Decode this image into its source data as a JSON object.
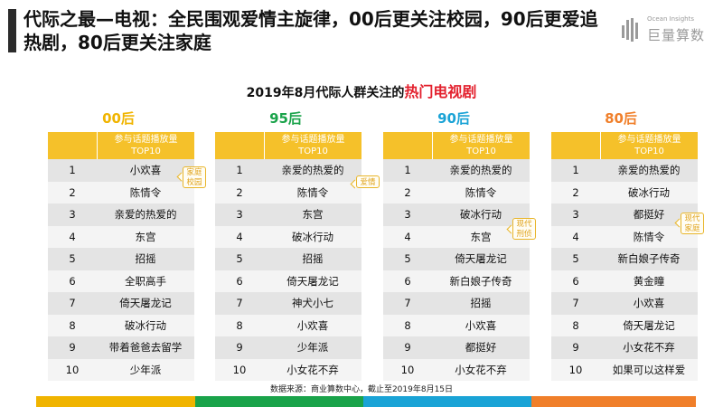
{
  "header": {
    "title": "代际之最—电视：全民围观爱情主旋律，00后更关注校园，90后更爱追热剧，80后更关注家庭",
    "logo_en": "Ocean Insights",
    "logo_cn": "巨量算数"
  },
  "subtitle": {
    "prefix": "2019年8月代际人群关注的",
    "highlight": "热门电视剧"
  },
  "table_header": {
    "line1": "参与话题播放量",
    "line2": "TOP10"
  },
  "generations": [
    {
      "label": "00后",
      "color": "#f0b400",
      "rows": [
        {
          "rank": "1",
          "show": "小欢喜"
        },
        {
          "rank": "2",
          "show": "陈情令"
        },
        {
          "rank": "3",
          "show": "亲爱的热爱的"
        },
        {
          "rank": "4",
          "show": "东宫"
        },
        {
          "rank": "5",
          "show": "招摇"
        },
        {
          "rank": "6",
          "show": "全职高手"
        },
        {
          "rank": "7",
          "show": "倚天屠龙记"
        },
        {
          "rank": "8",
          "show": "破冰行动"
        },
        {
          "rank": "9",
          "show": "带着爸爸去留学"
        },
        {
          "rank": "10",
          "show": "少年派"
        }
      ],
      "tag": "家庭\n校园"
    },
    {
      "label": "95后",
      "color": "#1aa34a",
      "rows": [
        {
          "rank": "1",
          "show": "亲爱的热爱的"
        },
        {
          "rank": "2",
          "show": "陈情令"
        },
        {
          "rank": "3",
          "show": "东宫"
        },
        {
          "rank": "4",
          "show": "破冰行动"
        },
        {
          "rank": "5",
          "show": "招摇"
        },
        {
          "rank": "6",
          "show": "倚天屠龙记"
        },
        {
          "rank": "7",
          "show": "神犬小七"
        },
        {
          "rank": "8",
          "show": "小欢喜"
        },
        {
          "rank": "9",
          "show": "少年派"
        },
        {
          "rank": "10",
          "show": "小女花不弃"
        }
      ],
      "tag": "爱情"
    },
    {
      "label": "90后",
      "color": "#1aa3d6",
      "rows": [
        {
          "rank": "1",
          "show": "亲爱的热爱的"
        },
        {
          "rank": "2",
          "show": "陈情令"
        },
        {
          "rank": "3",
          "show": "破冰行动"
        },
        {
          "rank": "4",
          "show": "东宫"
        },
        {
          "rank": "5",
          "show": "倚天屠龙记"
        },
        {
          "rank": "6",
          "show": "新白娘子传奇"
        },
        {
          "rank": "7",
          "show": "招摇"
        },
        {
          "rank": "8",
          "show": "小欢喜"
        },
        {
          "rank": "9",
          "show": "都挺好"
        },
        {
          "rank": "10",
          "show": "小女花不弃"
        }
      ],
      "tag": "现代\n刑侦"
    },
    {
      "label": "80后",
      "color": "#f07f2a",
      "rows": [
        {
          "rank": "1",
          "show": "亲爱的热爱的"
        },
        {
          "rank": "2",
          "show": "破冰行动"
        },
        {
          "rank": "3",
          "show": "都挺好"
        },
        {
          "rank": "4",
          "show": "陈情令"
        },
        {
          "rank": "5",
          "show": "新白娘子传奇"
        },
        {
          "rank": "6",
          "show": "黄金瞳"
        },
        {
          "rank": "7",
          "show": "小欢喜"
        },
        {
          "rank": "8",
          "show": "倚天屠龙记"
        },
        {
          "rank": "9",
          "show": "小女花不弃"
        },
        {
          "rank": "10",
          "show": "如果可以这样爱"
        }
      ],
      "tag": "现代\n家庭"
    }
  ],
  "source": "数据来源：商业算数中心，截止至2019年8月15日",
  "footer_colors": [
    "#f0b400",
    "#1aa34a",
    "#1aa3d6",
    "#f07f2a"
  ]
}
